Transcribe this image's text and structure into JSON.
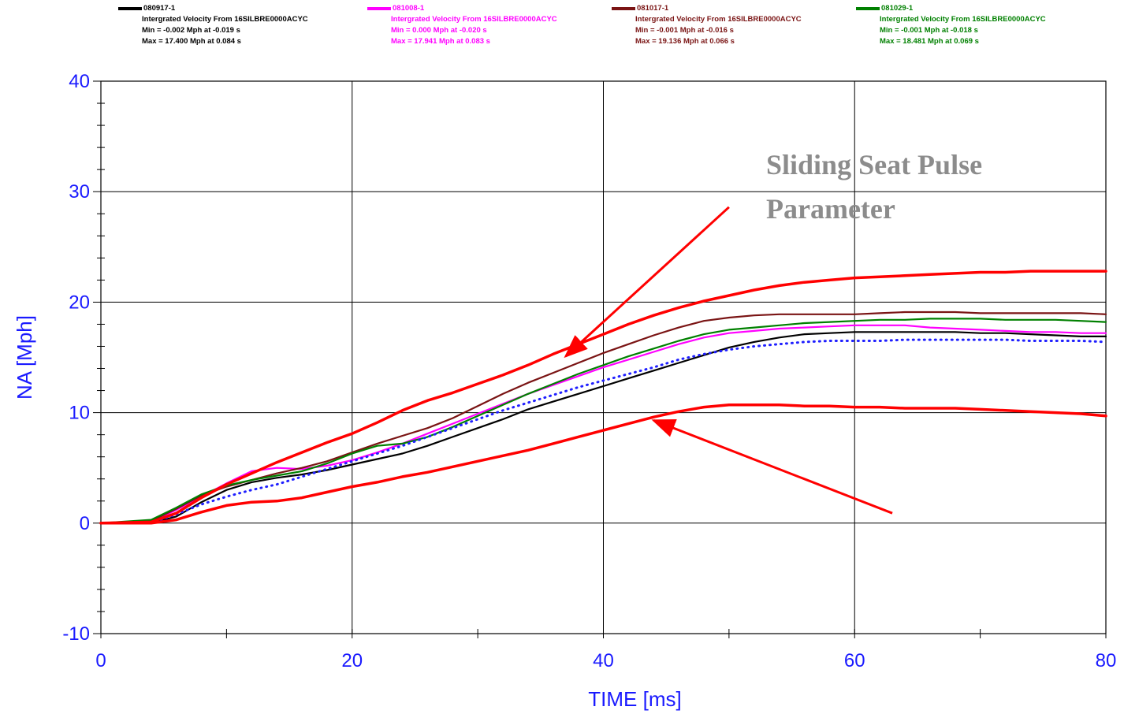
{
  "chart_data": {
    "type": "line",
    "title": "",
    "xlabel": "TIME [ms]",
    "ylabel": "NA [Mph]",
    "xlim": [
      0,
      80
    ],
    "ylim": [
      -10,
      40
    ],
    "x_ticks": [
      0,
      20,
      40,
      60,
      80
    ],
    "y_ticks": [
      -10,
      0,
      10,
      20,
      30,
      40
    ],
    "grid": true,
    "legend_placement": "top",
    "annotation": {
      "lines": [
        "Sliding Seat Pulse",
        "Parameter"
      ],
      "color": "#8c8c8c"
    },
    "series": [
      {
        "name": "080917-1",
        "subtitle": "Intergrated Velocity From 16SILBRE0000ACYC",
        "min_text": "Min = -0.002 Mph at -0.019 s",
        "max_text": "Max = 17.400 Mph at 0.084 s",
        "color": "#000000",
        "style": "solid",
        "x": [
          0,
          4,
          6,
          8,
          10,
          12,
          14,
          16,
          18,
          20,
          22,
          24,
          26,
          28,
          30,
          32,
          34,
          36,
          38,
          40,
          42,
          44,
          46,
          48,
          50,
          52,
          54,
          56,
          58,
          60,
          62,
          64,
          66,
          68,
          70,
          72,
          74,
          76,
          78,
          80
        ],
        "y": [
          0,
          0,
          0.6,
          1.9,
          3.0,
          3.7,
          4.1,
          4.4,
          4.8,
          5.3,
          5.8,
          6.3,
          7.0,
          7.8,
          8.6,
          9.4,
          10.3,
          11.0,
          11.7,
          12.4,
          13.1,
          13.8,
          14.5,
          15.2,
          15.9,
          16.4,
          16.8,
          17.1,
          17.2,
          17.3,
          17.3,
          17.3,
          17.3,
          17.3,
          17.2,
          17.2,
          17.1,
          17.0,
          16.9,
          16.9
        ]
      },
      {
        "name": "081008-1",
        "subtitle": "Intergrated Velocity From 16SILBRE0000ACYC",
        "min_text": "Min = 0.000 Mph at -0.020 s",
        "max_text": "Max = 17.941 Mph at 0.083 s",
        "color": "#ff00ff",
        "style": "solid",
        "x": [
          0,
          4,
          6,
          8,
          10,
          12,
          14,
          16,
          18,
          20,
          22,
          24,
          26,
          28,
          30,
          32,
          34,
          36,
          38,
          40,
          42,
          44,
          46,
          48,
          50,
          52,
          54,
          56,
          58,
          60,
          62,
          64,
          66,
          68,
          70,
          72,
          74,
          76,
          78,
          80
        ],
        "y": [
          0,
          0.1,
          1.2,
          2.4,
          3.6,
          4.7,
          5.0,
          4.9,
          5.2,
          5.7,
          6.4,
          7.2,
          8.1,
          9.0,
          9.9,
          10.8,
          11.7,
          12.5,
          13.3,
          14.1,
          14.8,
          15.5,
          16.2,
          16.8,
          17.2,
          17.4,
          17.6,
          17.7,
          17.8,
          17.9,
          17.9,
          17.9,
          17.7,
          17.6,
          17.5,
          17.4,
          17.3,
          17.3,
          17.2,
          17.2
        ]
      },
      {
        "name": "081017-1",
        "subtitle": "Intergrated Velocity From 16SILBRE0000ACYC",
        "min_text": "Min = -0.001 Mph at -0.016 s",
        "max_text": "Max = 19.136 Mph at 0.066 s",
        "color": "#7a1414",
        "style": "solid",
        "x": [
          0,
          4,
          6,
          8,
          10,
          12,
          14,
          16,
          18,
          20,
          22,
          24,
          26,
          28,
          30,
          32,
          34,
          36,
          38,
          40,
          42,
          44,
          46,
          48,
          50,
          52,
          54,
          56,
          58,
          60,
          62,
          64,
          66,
          68,
          70,
          72,
          74,
          76,
          78,
          80
        ],
        "y": [
          0,
          0.2,
          1.3,
          2.5,
          3.3,
          3.9,
          4.5,
          5.0,
          5.6,
          6.4,
          7.2,
          7.9,
          8.6,
          9.5,
          10.6,
          11.7,
          12.7,
          13.6,
          14.5,
          15.4,
          16.2,
          17.0,
          17.7,
          18.3,
          18.6,
          18.8,
          18.9,
          18.9,
          18.9,
          18.9,
          19.0,
          19.1,
          19.1,
          19.1,
          19.0,
          19.0,
          19.0,
          19.0,
          19.0,
          18.9
        ]
      },
      {
        "name": "081029-1",
        "subtitle": "Intergrated Velocity From 16SILBRE0000ACYC",
        "min_text": "Min = -0.001 Mph at -0.018 s",
        "max_text": "Max = 18.481 Mph at 0.069 s",
        "color": "#008000",
        "style": "solid",
        "x": [
          0,
          4,
          6,
          8,
          10,
          12,
          14,
          16,
          18,
          20,
          22,
          24,
          26,
          28,
          30,
          32,
          34,
          36,
          38,
          40,
          42,
          44,
          46,
          48,
          50,
          52,
          54,
          56,
          58,
          60,
          62,
          64,
          66,
          68,
          70,
          72,
          74,
          76,
          78,
          80
        ],
        "y": [
          0,
          0.3,
          1.4,
          2.6,
          3.4,
          3.9,
          4.3,
          4.7,
          5.4,
          6.3,
          7.0,
          7.2,
          7.8,
          8.7,
          9.7,
          10.7,
          11.7,
          12.6,
          13.5,
          14.3,
          15.1,
          15.8,
          16.5,
          17.1,
          17.5,
          17.7,
          17.9,
          18.1,
          18.2,
          18.3,
          18.4,
          18.4,
          18.5,
          18.5,
          18.5,
          18.4,
          18.4,
          18.4,
          18.3,
          18.2
        ]
      },
      {
        "name": "",
        "color": "#1f1fff",
        "style": "dotted",
        "x": [
          0,
          4,
          6,
          8,
          10,
          12,
          14,
          16,
          18,
          20,
          22,
          24,
          26,
          28,
          30,
          32,
          34,
          36,
          38,
          40,
          42,
          44,
          46,
          48,
          50,
          52,
          54,
          56,
          58,
          60,
          62,
          64,
          66,
          68,
          70,
          72,
          74,
          76,
          78,
          80
        ],
        "y": [
          0,
          0,
          0.8,
          1.7,
          2.4,
          3.0,
          3.5,
          4.2,
          4.9,
          5.6,
          6.3,
          7.0,
          7.8,
          8.6,
          9.4,
          10.2,
          10.9,
          11.6,
          12.3,
          12.9,
          13.5,
          14.1,
          14.8,
          15.3,
          15.7,
          16.0,
          16.2,
          16.4,
          16.5,
          16.5,
          16.5,
          16.6,
          16.6,
          16.6,
          16.6,
          16.6,
          16.5,
          16.5,
          16.5,
          16.4
        ]
      },
      {
        "name": "",
        "color": "#ff0000",
        "style": "solid",
        "x": [
          0,
          4,
          6,
          8,
          10,
          12,
          14,
          16,
          18,
          20,
          22,
          24,
          26,
          28,
          30,
          32,
          34,
          36,
          38,
          40,
          42,
          44,
          46,
          48,
          50,
          52,
          54,
          56,
          58,
          60,
          62,
          64,
          66,
          68,
          70,
          72,
          74,
          76,
          78,
          80
        ],
        "y": [
          0,
          0.1,
          0.9,
          2.3,
          3.5,
          4.5,
          5.5,
          6.4,
          7.3,
          8.1,
          9.1,
          10.2,
          11.1,
          11.8,
          12.6,
          13.4,
          14.3,
          15.3,
          16.2,
          17.1,
          18.0,
          18.8,
          19.5,
          20.1,
          20.6,
          21.1,
          21.5,
          21.8,
          22.0,
          22.2,
          22.3,
          22.4,
          22.5,
          22.6,
          22.7,
          22.7,
          22.8,
          22.8,
          22.8,
          22.8
        ]
      },
      {
        "name": "",
        "color": "#ff0000",
        "style": "solid",
        "x": [
          0,
          4,
          6,
          8,
          10,
          12,
          14,
          16,
          18,
          20,
          22,
          24,
          26,
          28,
          30,
          32,
          34,
          36,
          38,
          40,
          42,
          44,
          46,
          48,
          50,
          52,
          54,
          56,
          58,
          60,
          62,
          64,
          66,
          68,
          70,
          72,
          74,
          76,
          78,
          80
        ],
        "y": [
          0,
          0,
          0.3,
          1.0,
          1.6,
          1.9,
          2.0,
          2.3,
          2.8,
          3.3,
          3.7,
          4.2,
          4.6,
          5.1,
          5.6,
          6.1,
          6.6,
          7.2,
          7.8,
          8.4,
          9.0,
          9.6,
          10.1,
          10.5,
          10.7,
          10.7,
          10.7,
          10.6,
          10.6,
          10.5,
          10.5,
          10.4,
          10.4,
          10.4,
          10.3,
          10.2,
          10.1,
          10.0,
          9.9,
          9.7
        ]
      }
    ],
    "arrows": [
      {
        "from": [
          50,
          28.6
        ],
        "to": [
          37,
          15.1
        ],
        "color": "#ff0000"
      },
      {
        "from": [
          63,
          0.9
        ],
        "to": [
          44,
          9.3
        ],
        "color": "#ff0000"
      }
    ]
  }
}
